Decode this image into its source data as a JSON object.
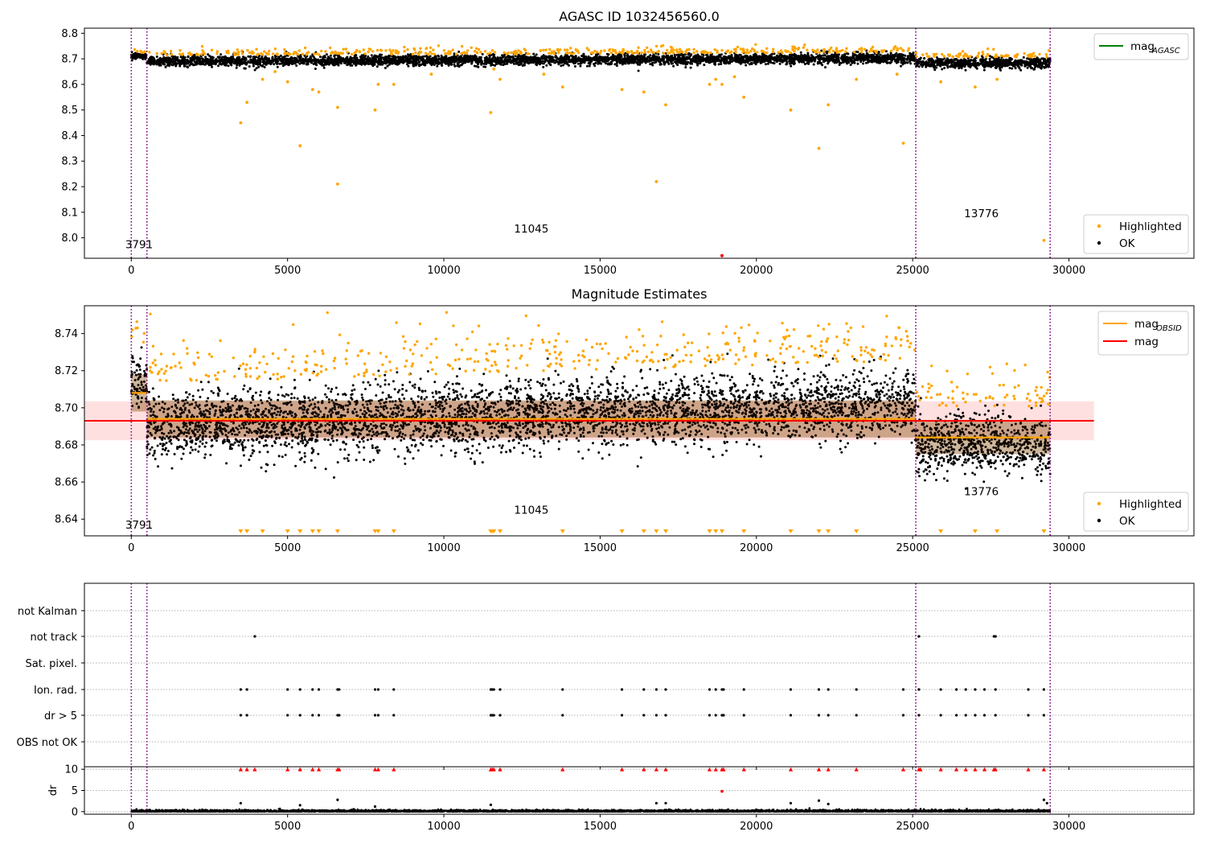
{
  "chart_data": [
    {
      "type": "scatter",
      "title": "AGASC ID 1032456560.0",
      "xlim": [
        -1500,
        34000
      ],
      "ylim": [
        7.92,
        8.82
      ],
      "x_ticks": [
        0,
        5000,
        10000,
        15000,
        20000,
        25000,
        30000
      ],
      "y_ticks": [
        8.0,
        8.1,
        8.2,
        8.3,
        8.4,
        8.5,
        8.6,
        8.7,
        8.8
      ],
      "y_tick_labels": [
        "8.0",
        "8.1",
        "8.2",
        "8.3",
        "8.4",
        "8.5",
        "8.6",
        "8.7",
        "8.8"
      ],
      "observation_boundaries": [
        0,
        500,
        25100,
        29400
      ],
      "obsid_labels": [
        {
          "text": "3791",
          "x": 250,
          "y": 7.96
        },
        {
          "text": "11045",
          "x": 12800,
          "y": 8.02
        },
        {
          "text": "13776",
          "x": 27200,
          "y": 8.08
        }
      ],
      "line_legend": [
        {
          "name": "mag",
          "sub": "AGASC",
          "color": "#008000"
        }
      ],
      "marker_legend": [
        {
          "name": "Highlighted",
          "color": "#ffa500"
        },
        {
          "name": "OK",
          "color": "#000000"
        }
      ],
      "segments": [
        {
          "x_range": [
            0,
            500
          ],
          "center": 8.71,
          "spread": 0.006
        },
        {
          "x_range": [
            500,
            25100
          ],
          "center": 8.69,
          "drift": 0.012,
          "spread": 0.01
        },
        {
          "x_range": [
            25100,
            29400
          ],
          "center": 8.683,
          "spread": 0.01
        }
      ],
      "outliers": [
        {
          "x": 3500,
          "y": 8.45
        },
        {
          "x": 3700,
          "y": 8.53
        },
        {
          "x": 4200,
          "y": 8.62
        },
        {
          "x": 4600,
          "y": 8.65
        },
        {
          "x": 5000,
          "y": 8.61
        },
        {
          "x": 5400,
          "y": 8.36
        },
        {
          "x": 5800,
          "y": 8.58
        },
        {
          "x": 6000,
          "y": 8.57
        },
        {
          "x": 6600,
          "y": 8.21
        },
        {
          "x": 6600,
          "y": 8.51
        },
        {
          "x": 7800,
          "y": 8.5
        },
        {
          "x": 7900,
          "y": 8.6
        },
        {
          "x": 8400,
          "y": 8.6
        },
        {
          "x": 9600,
          "y": 8.64
        },
        {
          "x": 11500,
          "y": 8.49
        },
        {
          "x": 11600,
          "y": 8.66
        },
        {
          "x": 11800,
          "y": 8.62
        },
        {
          "x": 13200,
          "y": 8.64
        },
        {
          "x": 13800,
          "y": 8.59
        },
        {
          "x": 15700,
          "y": 8.58
        },
        {
          "x": 16400,
          "y": 8.57
        },
        {
          "x": 16800,
          "y": 8.22
        },
        {
          "x": 17100,
          "y": 8.52
        },
        {
          "x": 18500,
          "y": 8.6
        },
        {
          "x": 18700,
          "y": 8.62
        },
        {
          "x": 18900,
          "y": 8.6
        },
        {
          "x": 19300,
          "y": 8.63
        },
        {
          "x": 19600,
          "y": 8.55
        },
        {
          "x": 21100,
          "y": 8.5
        },
        {
          "x": 22000,
          "y": 8.35
        },
        {
          "x": 22300,
          "y": 8.52
        },
        {
          "x": 23200,
          "y": 8.62
        },
        {
          "x": 24700,
          "y": 8.37
        },
        {
          "x": 24500,
          "y": 8.64
        },
        {
          "x": 25900,
          "y": 8.61
        },
        {
          "x": 27000,
          "y": 8.59
        },
        {
          "x": 27700,
          "y": 8.62
        },
        {
          "x": 29200,
          "y": 7.99
        }
      ],
      "red_points": [
        {
          "x": 18900,
          "y": 7.93
        }
      ]
    },
    {
      "type": "scatter",
      "title": "Magnitude Estimates",
      "xlim": [
        -1500,
        34000
      ],
      "ylim": [
        8.631,
        8.755
      ],
      "x_ticks": [
        0,
        5000,
        10000,
        15000,
        20000,
        25000,
        30000
      ],
      "y_ticks": [
        8.64,
        8.66,
        8.68,
        8.7,
        8.72,
        8.74
      ],
      "y_tick_labels": [
        "8.64",
        "8.66",
        "8.68",
        "8.70",
        "8.72",
        "8.74"
      ],
      "observation_boundaries": [
        0,
        500,
        25100,
        29400
      ],
      "obsid_labels": [
        {
          "text": "3791",
          "x": 250,
          "y": 8.635
        },
        {
          "text": "11045",
          "x": 12800,
          "y": 8.643
        },
        {
          "text": "13776",
          "x": 27200,
          "y": 8.653
        }
      ],
      "line_legend": [
        {
          "name": "mag",
          "sub": "OBSID",
          "color": "#ffa500"
        },
        {
          "name": "mag",
          "sub": "",
          "color": "#ff0000"
        }
      ],
      "marker_legend": [
        {
          "name": "Highlighted",
          "color": "#ffa500"
        },
        {
          "name": "OK",
          "color": "#000000"
        }
      ],
      "mag_agasc": {
        "value": 8.693,
        "band": [
          8.6825,
          8.7035
        ],
        "x_range": [
          -1500,
          30800
        ]
      },
      "mag_obsid": [
        {
          "x_range": [
            0,
            500
          ],
          "value": 8.708,
          "band": [
            8.698,
            8.718
          ]
        },
        {
          "x_range": [
            500,
            25100
          ],
          "value": 8.694,
          "band": [
            8.684,
            8.704
          ]
        },
        {
          "x_range": [
            25100,
            29400
          ],
          "value": 8.684,
          "band": [
            8.675,
            8.693
          ]
        }
      ],
      "segments": [
        {
          "x_range": [
            0,
            500
          ],
          "center": 8.712,
          "spread": 0.008
        },
        {
          "x_range": [
            500,
            25100
          ],
          "center": 8.69,
          "drift": 0.012,
          "spread": 0.009
        },
        {
          "x_range": [
            25100,
            29400
          ],
          "center": 8.68,
          "spread": 0.008
        }
      ],
      "lower_limit_x": [
        3500,
        3700,
        4200,
        5000,
        5400,
        5800,
        6000,
        6600,
        7800,
        7900,
        8400,
        11500,
        11550,
        11600,
        11800,
        13800,
        15700,
        16400,
        16800,
        17100,
        18500,
        18700,
        18900,
        19600,
        21100,
        22000,
        22300,
        23200,
        25900,
        27000,
        27700,
        29200
      ]
    },
    {
      "type": "scatter",
      "title": "",
      "xlim": [
        -1500,
        34000
      ],
      "x_ticks": [
        0,
        5000,
        10000,
        15000,
        20000,
        25000,
        30000
      ],
      "observation_boundaries": [
        0,
        500,
        25100,
        29400
      ],
      "flag_rows": [
        "not Kalman",
        "not track",
        "Sat. pixel.",
        "Ion. rad.",
        "dr > 5",
        "OBS not OK"
      ],
      "flag_points": [
        {
          "row": "not track",
          "x": [
            3950,
            25200,
            27600,
            27650
          ]
        },
        {
          "row": "Ion. rad.",
          "x": [
            3500,
            3700,
            5000,
            5400,
            5800,
            6000,
            6600,
            6650,
            7800,
            7900,
            8400,
            11500,
            11550,
            11600,
            11800,
            13800,
            15700,
            16400,
            16800,
            17100,
            18500,
            18700,
            18900,
            18950,
            19600,
            21100,
            22000,
            22300,
            23200,
            24700,
            25200,
            25900,
            26400,
            26700,
            27000,
            27300,
            27650,
            28700,
            29200
          ]
        },
        {
          "row": "dr > 5",
          "x": [
            3500,
            3700,
            5000,
            5400,
            5800,
            6000,
            6600,
            6650,
            7800,
            7900,
            8400,
            11500,
            11550,
            11600,
            11800,
            13800,
            15700,
            16400,
            16800,
            17100,
            18500,
            18700,
            18900,
            18950,
            19600,
            21100,
            22000,
            22300,
            23200,
            24700,
            25200,
            25900,
            26400,
            26700,
            27000,
            27300,
            27650,
            28700,
            29200
          ]
        }
      ]
    },
    {
      "type": "scatter",
      "title": "",
      "ylabel": "dr",
      "xlim": [
        -1500,
        34000
      ],
      "ylim": [
        -0.6,
        10.6
      ],
      "x_ticks": [
        0,
        5000,
        10000,
        15000,
        20000,
        25000,
        30000
      ],
      "x_tick_labels": [
        "0",
        "5000",
        "10000",
        "15000",
        "20000",
        "25000",
        "30000"
      ],
      "y_ticks": [
        0,
        5,
        10
      ],
      "y_tick_labels": [
        "0",
        "5",
        "10"
      ],
      "observation_boundaries": [
        0,
        500,
        25100,
        29400
      ],
      "capped_x": [
        3500,
        3700,
        3950,
        5000,
        5400,
        5800,
        6000,
        6600,
        6650,
        7800,
        7900,
        8400,
        11500,
        11550,
        11600,
        11800,
        13800,
        15700,
        16400,
        16800,
        17100,
        18500,
        18700,
        18900,
        18950,
        19600,
        21100,
        22000,
        22300,
        23200,
        24700,
        25200,
        25250,
        25900,
        26400,
        26700,
        27000,
        27300,
        27600,
        27650,
        28700,
        29200
      ],
      "scatter_points": [
        {
          "x": 3500,
          "y": 2.0
        },
        {
          "x": 5400,
          "y": 1.5
        },
        {
          "x": 6600,
          "y": 2.8
        },
        {
          "x": 7800,
          "y": 1.2
        },
        {
          "x": 11500,
          "y": 1.6
        },
        {
          "x": 16800,
          "y": 2.0
        },
        {
          "x": 17100,
          "y": 2.0
        },
        {
          "x": 21100,
          "y": 2.0
        },
        {
          "x": 22000,
          "y": 2.6
        },
        {
          "x": 22300,
          "y": 1.8
        },
        {
          "x": 29200,
          "y": 2.8
        },
        {
          "x": 29300,
          "y": 2.0
        }
      ],
      "red_points": [
        {
          "x": 18900,
          "y": 4.8
        }
      ]
    }
  ]
}
